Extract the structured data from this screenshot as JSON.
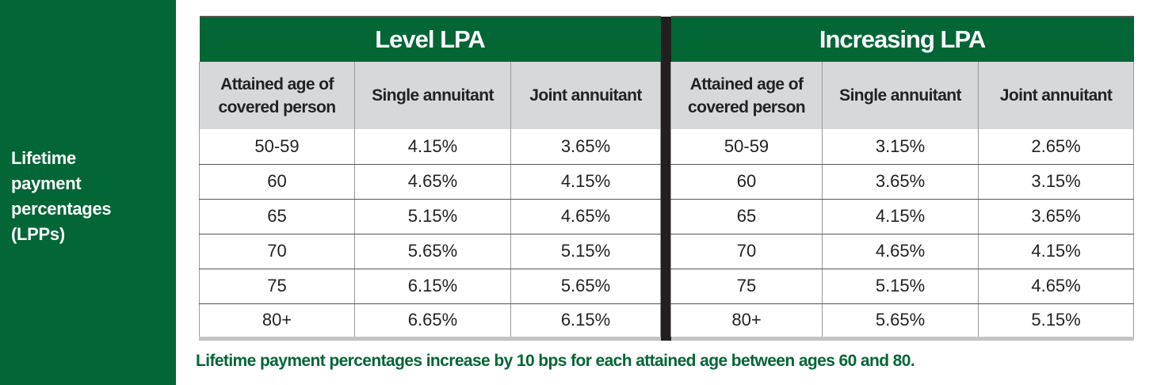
{
  "side_label": [
    "Lifetime",
    "payment",
    "percentages",
    "(LPPs)"
  ],
  "groups": [
    "Level LPA",
    "Increasing LPA"
  ],
  "columns": [
    "Attained age of covered person",
    "Single annuitant",
    "Joint annuitant"
  ],
  "level_rows": [
    [
      "50-59",
      "4.15%",
      "3.65%"
    ],
    [
      "60",
      "4.65%",
      "4.15%"
    ],
    [
      "65",
      "5.15%",
      "4.65%"
    ],
    [
      "70",
      "5.65%",
      "5.15%"
    ],
    [
      "75",
      "6.15%",
      "5.65%"
    ],
    [
      "80+",
      "6.65%",
      "6.15%"
    ]
  ],
  "increasing_rows": [
    [
      "50-59",
      "3.15%",
      "2.65%"
    ],
    [
      "60",
      "3.65%",
      "3.15%"
    ],
    [
      "65",
      "4.15%",
      "3.65%"
    ],
    [
      "70",
      "4.65%",
      "4.15%"
    ],
    [
      "75",
      "5.15%",
      "4.65%"
    ],
    [
      "80+",
      "5.65%",
      "5.15%"
    ]
  ],
  "footnote": "Lifetime payment percentages increase by 10 bps for each attained age between ages 60 and 80.",
  "colors": {
    "brand_green": "#026635",
    "header_gray": "#d7d8da"
  }
}
